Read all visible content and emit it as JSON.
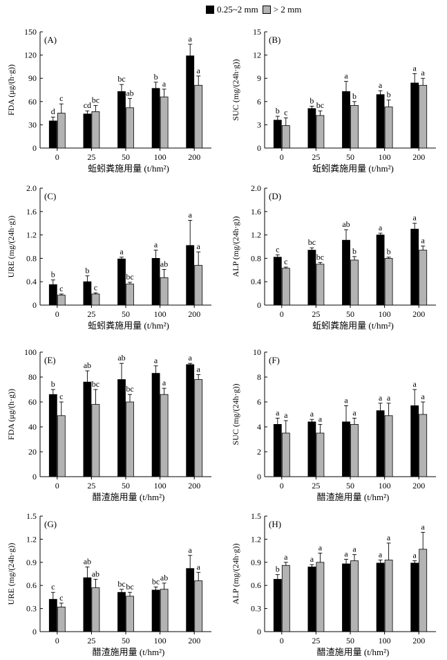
{
  "legend": [
    {
      "label": "0.25~2 mm",
      "color": "#000000"
    },
    {
      "label": "> 2 mm",
      "color": "#b3b3b3"
    }
  ],
  "chart_data": [
    {
      "type": "bar",
      "panel": "(A)",
      "categories": [
        "0",
        "25",
        "50",
        "100",
        "200"
      ],
      "ylabel": "FDA (μg/(h·g))",
      "xlabel": "蚯蚓粪施用量 (t/hm²)",
      "ylim": [
        0,
        150
      ],
      "yticks": [
        "0",
        "30",
        "60",
        "90",
        "120",
        "150"
      ],
      "series": [
        {
          "name": "0.25~2 mm",
          "values": [
            35,
            44,
            73,
            77,
            119
          ],
          "errors": [
            5,
            4,
            9,
            8,
            15
          ],
          "letters": [
            "d",
            "cd",
            "bc",
            "b",
            "a"
          ]
        },
        {
          "name": "> 2 mm",
          "values": [
            45,
            47,
            52,
            66,
            81
          ],
          "errors": [
            12,
            8,
            12,
            10,
            12
          ],
          "letters": [
            "c",
            "bc",
            "ab",
            "a",
            "a"
          ]
        }
      ]
    },
    {
      "type": "bar",
      "panel": "(B)",
      "categories": [
        "0",
        "25",
        "50",
        "100",
        "200"
      ],
      "ylabel": "SUC (mg/(24h·g))",
      "xlabel": "蚯蚓粪施用量 (t/hm²)",
      "ylim": [
        0,
        15
      ],
      "yticks": [
        "0",
        "3",
        "6",
        "9",
        "12",
        "15"
      ],
      "series": [
        {
          "name": "0.25~2 mm",
          "values": [
            3.6,
            5.1,
            7.3,
            6.9,
            8.4
          ],
          "errors": [
            0.5,
            0.3,
            1.3,
            0.5,
            1.2
          ],
          "letters": [
            "b",
            "b",
            "a",
            "a",
            "a"
          ]
        },
        {
          "name": "> 2 mm",
          "values": [
            2.9,
            4.2,
            5.5,
            5.3,
            8.1
          ],
          "errors": [
            1.0,
            0.6,
            0.5,
            0.9,
            0.9
          ],
          "letters": [
            "c",
            "bc",
            "b",
            "b",
            "a"
          ]
        }
      ]
    },
    {
      "type": "bar",
      "panel": "(C)",
      "categories": [
        "0",
        "25",
        "50",
        "100",
        "200"
      ],
      "ylabel": "URE (mg/(24h·g))",
      "xlabel": "蚯蚓粪施用量 (t/hm²)",
      "ylim": [
        0,
        2.0
      ],
      "yticks": [
        "0",
        "0.4",
        "0.8",
        "1.2",
        "1.6",
        "2.0"
      ],
      "series": [
        {
          "name": "0.25~2 mm",
          "values": [
            0.35,
            0.4,
            0.79,
            0.8,
            1.02
          ],
          "errors": [
            0.08,
            0.1,
            0.03,
            0.14,
            0.43
          ],
          "letters": [
            "b",
            "b",
            "a",
            "a",
            "a"
          ]
        },
        {
          "name": "> 2 mm",
          "values": [
            0.17,
            0.19,
            0.36,
            0.47,
            0.68
          ],
          "errors": [
            0.02,
            0.02,
            0.03,
            0.14,
            0.23
          ],
          "letters": [
            "c",
            "c",
            "bc",
            "ab",
            "a"
          ]
        }
      ]
    },
    {
      "type": "bar",
      "panel": "(D)",
      "categories": [
        "0",
        "25",
        "50",
        "100",
        "200"
      ],
      "ylabel": "ALP (mg/(24h·g))",
      "xlabel": "蚯蚓粪施用量 (t/hm²)",
      "ylim": [
        0,
        2.0
      ],
      "yticks": [
        "0",
        "0.4",
        "0.8",
        "1.2",
        "1.6",
        "2.0"
      ],
      "series": [
        {
          "name": "0.25~2 mm",
          "values": [
            0.82,
            0.94,
            1.11,
            1.2,
            1.3
          ],
          "errors": [
            0.04,
            0.04,
            0.18,
            0.03,
            0.1
          ],
          "letters": [
            "c",
            "bc",
            "ab",
            "a",
            "a"
          ]
        },
        {
          "name": "> 2 mm",
          "values": [
            0.63,
            0.7,
            0.77,
            0.8,
            0.94
          ],
          "errors": [
            0.02,
            0.03,
            0.06,
            0.02,
            0.07
          ],
          "letters": [
            "c",
            "bc",
            "b",
            "b",
            "a"
          ]
        }
      ]
    },
    {
      "type": "bar",
      "panel": "(E)",
      "categories": [
        "0",
        "25",
        "50",
        "100",
        "200"
      ],
      "ylabel": "FDA (μg/(h·g))",
      "xlabel": "醋渣施用量 (t/hm²)",
      "ylim": [
        0,
        100
      ],
      "yticks": [
        "0",
        "20",
        "40",
        "60",
        "80",
        "100"
      ],
      "series": [
        {
          "name": "0.25~2 mm",
          "values": [
            66,
            76,
            78,
            83,
            90
          ],
          "errors": [
            4,
            9,
            13,
            6,
            1
          ],
          "letters": [
            "b",
            "ab",
            "ab",
            "a",
            "a"
          ]
        },
        {
          "name": "> 2 mm",
          "values": [
            49,
            58,
            60,
            66,
            78
          ],
          "errors": [
            11,
            12,
            6,
            5,
            4
          ],
          "letters": [
            "c",
            "bc",
            "bc",
            "a",
            "a"
          ]
        }
      ]
    },
    {
      "type": "bar",
      "panel": "(F)",
      "categories": [
        "0",
        "25",
        "50",
        "100",
        "200"
      ],
      "ylabel": "SUC (mg/(24h·g))",
      "xlabel": "醋渣施用量 (t/hm²)",
      "ylim": [
        0,
        10
      ],
      "yticks": [
        "0",
        "2",
        "4",
        "6",
        "8",
        "10"
      ],
      "series": [
        {
          "name": "0.25~2 mm",
          "values": [
            4.2,
            4.4,
            4.4,
            5.3,
            5.7
          ],
          "errors": [
            0.5,
            0.2,
            1.3,
            0.6,
            1.3
          ],
          "letters": [
            "a",
            "a",
            "a",
            "a",
            "a"
          ]
        },
        {
          "name": "> 2 mm",
          "values": [
            3.5,
            3.5,
            4.2,
            4.9,
            5.0
          ],
          "errors": [
            1.0,
            0.7,
            0.5,
            1.0,
            1.0
          ],
          "letters": [
            "a",
            "a",
            "a",
            "a",
            "a"
          ]
        }
      ]
    },
    {
      "type": "bar",
      "panel": "(G)",
      "categories": [
        "0",
        "25",
        "50",
        "100",
        "200"
      ],
      "ylabel": "URE (mg/(24h·g))",
      "xlabel": "醋渣施用量 (t/hm²)",
      "ylim": [
        0,
        1.5
      ],
      "yticks": [
        "0",
        "0.3",
        "0.6",
        "0.9",
        "1.2",
        "1.5"
      ],
      "series": [
        {
          "name": "0.25~2 mm",
          "values": [
            0.42,
            0.7,
            0.51,
            0.54,
            0.82
          ],
          "errors": [
            0.09,
            0.14,
            0.04,
            0.04,
            0.17
          ],
          "letters": [
            "c",
            "ab",
            "bc",
            "bc",
            "a"
          ]
        },
        {
          "name": "> 2 mm",
          "values": [
            0.32,
            0.57,
            0.46,
            0.55,
            0.66
          ],
          "errors": [
            0.05,
            0.11,
            0.05,
            0.08,
            0.11
          ],
          "letters": [
            "c",
            "ab",
            "bc",
            "ab",
            "a"
          ]
        }
      ]
    },
    {
      "type": "bar",
      "panel": "(H)",
      "categories": [
        "0",
        "25",
        "50",
        "100",
        "200"
      ],
      "ylabel": "ALP (mg/(24h·g))",
      "xlabel": "醋渣施用量 (t/hm²)",
      "ylim": [
        0,
        1.5
      ],
      "yticks": [
        "0",
        "0.3",
        "0.6",
        "0.9",
        "1.2",
        "1.5"
      ],
      "series": [
        {
          "name": "0.25~2 mm",
          "values": [
            0.68,
            0.84,
            0.88,
            0.89,
            0.89
          ],
          "errors": [
            0.06,
            0.03,
            0.06,
            0.04,
            0.03
          ],
          "letters": [
            "b",
            "a",
            "a",
            "a",
            "a"
          ]
        },
        {
          "name": "> 2 mm",
          "values": [
            0.86,
            0.9,
            0.92,
            0.93,
            1.07
          ],
          "errors": [
            0.04,
            0.12,
            0.08,
            0.22,
            0.22
          ],
          "letters": [
            "a",
            "a",
            "a",
            "a",
            "a"
          ]
        }
      ]
    }
  ]
}
